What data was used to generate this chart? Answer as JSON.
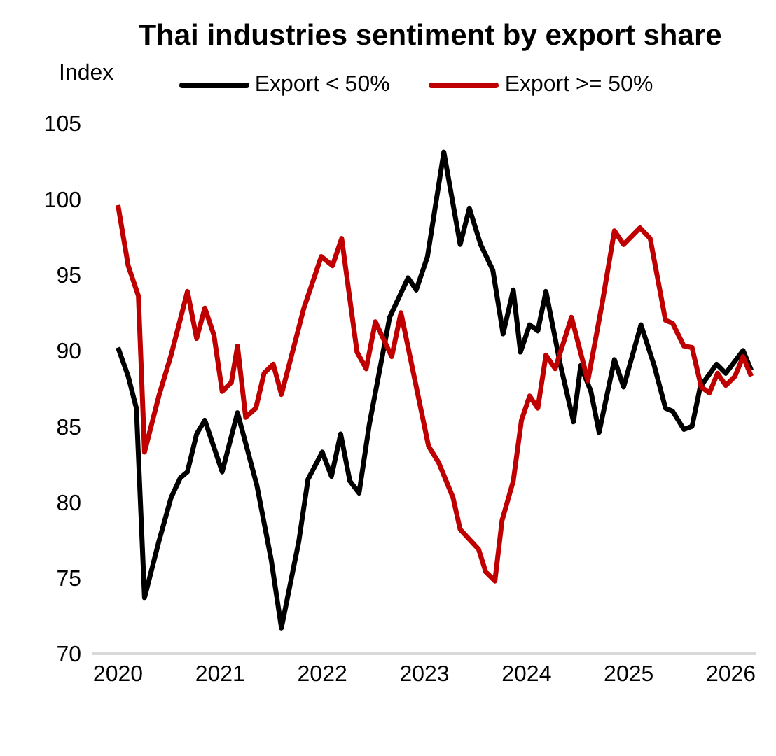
{
  "chart_data": {
    "type": "line",
    "title": "Thai industries sentiment by export share",
    "ylabel": "Index",
    "legend": "top",
    "grid": false,
    "marker": "none",
    "line_style": "solid",
    "xlim": [
      2019.75,
      2026.25
    ],
    "xticks": [
      2020,
      2021,
      2022,
      2023,
      2024,
      2025,
      2026
    ],
    "ylim": [
      70,
      105
    ],
    "yticks": [
      70,
      75,
      80,
      85,
      90,
      95,
      100,
      105
    ],
    "series": [
      {
        "name": "Export < 50%",
        "color": "#000000",
        "x": [
          2020.0,
          2020.1,
          2020.18,
          2020.26,
          2020.4,
          2020.52,
          2020.61,
          2020.68,
          2020.77,
          2020.85,
          2021.02,
          2021.17,
          2021.36,
          2021.5,
          2021.6,
          2021.77,
          2021.86,
          2022.0,
          2022.09,
          2022.18,
          2022.27,
          2022.36,
          2022.46,
          2022.66,
          2022.84,
          2022.92,
          2023.03,
          2023.19,
          2023.35,
          2023.44,
          2023.55,
          2023.67,
          2023.77,
          2023.87,
          2023.94,
          2024.03,
          2024.11,
          2024.19,
          2024.33,
          2024.46,
          2024.53,
          2024.63,
          2024.71,
          2024.86,
          2024.95,
          2025.12,
          2025.25,
          2025.36,
          2025.43,
          2025.54,
          2025.62,
          2025.7,
          2025.86,
          2025.95,
          2026.12,
          2026.2
        ],
        "values": [
          90.2,
          88.3,
          86.2,
          73.7,
          77.4,
          80.3,
          81.6,
          82.0,
          84.5,
          85.4,
          82.0,
          85.9,
          81.1,
          76.2,
          71.7,
          77.4,
          81.5,
          83.3,
          81.7,
          84.5,
          81.4,
          80.6,
          85.1,
          92.2,
          94.8,
          94.0,
          96.2,
          103.1,
          97.0,
          99.4,
          97.0,
          95.3,
          91.1,
          94.0,
          89.9,
          91.7,
          91.3,
          93.9,
          89.1,
          85.3,
          89.0,
          87.3,
          84.6,
          89.4,
          87.6,
          91.7,
          89.0,
          86.2,
          86.0,
          84.8,
          85.0,
          87.6,
          89.1,
          88.5,
          90.0,
          88.7
        ]
      },
      {
        "name": "Export >= 50%",
        "color": "#c00000",
        "x": [
          2020.0,
          2020.1,
          2020.2,
          2020.26,
          2020.4,
          2020.52,
          2020.68,
          2020.77,
          2020.85,
          2020.94,
          2021.02,
          2021.11,
          2021.17,
          2021.25,
          2021.35,
          2021.43,
          2021.52,
          2021.6,
          2021.82,
          2021.99,
          2022.1,
          2022.19,
          2022.34,
          2022.43,
          2022.52,
          2022.68,
          2022.77,
          2023.04,
          2023.14,
          2023.28,
          2023.35,
          2023.53,
          2023.6,
          2023.69,
          2023.76,
          2023.87,
          2023.95,
          2024.03,
          2024.11,
          2024.19,
          2024.28,
          2024.44,
          2024.6,
          2024.74,
          2024.86,
          2024.95,
          2025.11,
          2025.21,
          2025.36,
          2025.43,
          2025.54,
          2025.62,
          2025.71,
          2025.79,
          2025.87,
          2025.95,
          2026.04,
          2026.12,
          2026.2
        ],
        "values": [
          99.6,
          95.6,
          93.6,
          83.3,
          87.0,
          89.7,
          93.9,
          90.8,
          92.8,
          91.0,
          87.3,
          87.9,
          90.3,
          85.6,
          86.2,
          88.5,
          89.1,
          87.1,
          92.8,
          96.2,
          95.6,
          97.4,
          89.9,
          88.8,
          91.9,
          89.6,
          92.5,
          83.7,
          82.6,
          80.3,
          78.2,
          76.9,
          75.4,
          74.8,
          78.8,
          81.4,
          85.4,
          87.0,
          86.2,
          89.7,
          88.8,
          92.2,
          88.0,
          93.1,
          97.9,
          97.0,
          98.1,
          97.4,
          92.0,
          91.8,
          90.3,
          90.2,
          87.6,
          87.2,
          88.5,
          87.7,
          88.3,
          89.6,
          88.3
        ]
      }
    ]
  }
}
